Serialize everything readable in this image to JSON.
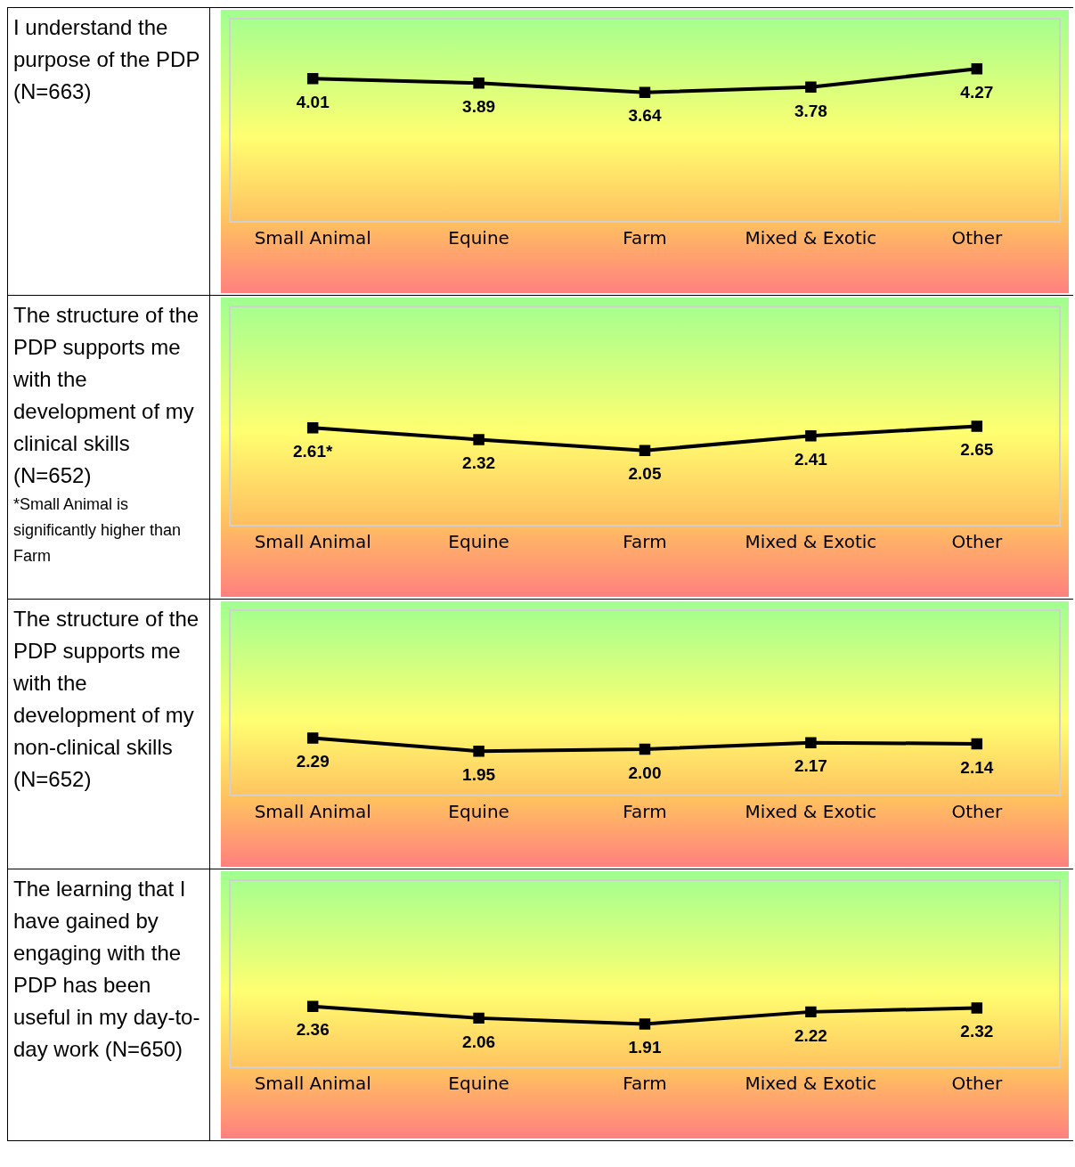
{
  "chart_data": [
    {
      "type": "line",
      "title": "I understand the purpose of the PDP (N=663)",
      "categories": [
        "Small Animal",
        "Equine",
        "Farm",
        "Mixed & Exotic",
        "Other"
      ],
      "series": [
        {
          "color": "#000000",
          "values": [
            4.01,
            3.89,
            3.64,
            3.78,
            4.27
          ]
        }
      ],
      "ylim": [
        0.2,
        5.6
      ],
      "tick_labels": "x",
      "data_labels": true,
      "marker": "square",
      "line_style": "solid",
      "grid": false,
      "legend": false
    },
    {
      "type": "line",
      "title": "The structure of the PDP supports me with the development of my clinical skills (N=652)",
      "annotations": [
        "*Small Animal is significantly higher than Farm"
      ],
      "categories": [
        "Small Animal",
        "Equine",
        "Farm",
        "Mixed & Exotic",
        "Other"
      ],
      "series": [
        {
          "color": "#000000",
          "values": [
            2.61,
            2.32,
            2.05,
            2.41,
            2.65
          ],
          "value_labels": [
            "2.61*",
            "2.32",
            "2.05",
            "2.41",
            "2.65"
          ]
        }
      ],
      "ylim": [
        0.2,
        5.6
      ],
      "tick_labels": "x",
      "marker": "square",
      "line_style": "solid",
      "grid": false,
      "legend": false
    },
    {
      "type": "line",
      "title": "The structure of the PDP supports me with the development of my non-clinical skills (N=652)",
      "categories": [
        "Small Animal",
        "Equine",
        "Farm",
        "Mixed & Exotic",
        "Other"
      ],
      "series": [
        {
          "color": "#000000",
          "values": [
            2.29,
            1.95,
            2.0,
            2.17,
            2.14
          ],
          "value_labels": [
            "2.29",
            "1.95",
            "2.00",
            "2.17",
            "2.14"
          ]
        }
      ],
      "ylim": [
        0.8,
        5.6
      ],
      "tick_labels": "x",
      "marker": "square",
      "line_style": "solid",
      "grid": false,
      "legend": false
    },
    {
      "type": "line",
      "title": "The learning that I have gained by engaging with the PDP has been useful in my day-to-day work (N=650)",
      "categories": [
        "Small Animal",
        "Equine",
        "Farm",
        "Mixed & Exotic",
        "Other"
      ],
      "series": [
        {
          "color": "#000000",
          "values": [
            2.36,
            2.06,
            1.91,
            2.22,
            2.32
          ]
        }
      ],
      "ylim": [
        0.8,
        5.6
      ],
      "tick_labels": "x",
      "data_labels": true,
      "marker": "square",
      "line_style": "solid",
      "grid": false,
      "legend": false
    }
  ]
}
